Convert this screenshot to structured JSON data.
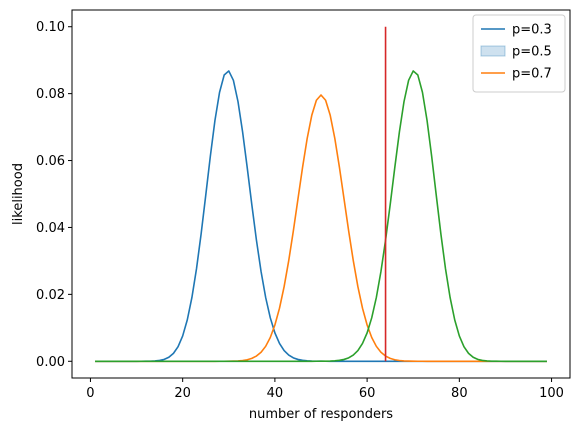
{
  "chart_data": {
    "type": "line",
    "title": "",
    "xlabel": "number of responders",
    "ylabel": "likelihood",
    "xlim": [
      -4,
      104
    ],
    "ylim": [
      -0.005,
      0.105
    ],
    "xticks": [
      0,
      20,
      40,
      60,
      80,
      100
    ],
    "yticks": [
      0.0,
      0.02,
      0.04,
      0.06,
      0.08,
      0.1
    ],
    "ytick_labels": [
      "0.00",
      "0.02",
      "0.04",
      "0.06",
      "0.08",
      "0.10"
    ],
    "grid": false,
    "legend_position": "top-right",
    "legend": [
      {
        "label": "p=0.3",
        "kind": "line",
        "color": "#1f77b4"
      },
      {
        "label": "p=0.5",
        "kind": "patch",
        "color": "#1f77b4"
      },
      {
        "label": "p=0.7",
        "kind": "line",
        "color": "#ff7f0e"
      }
    ],
    "n": 100,
    "x_range": [
      1,
      99
    ],
    "series": [
      {
        "p": 0.3,
        "color": "#1f77b4"
      },
      {
        "p": 0.5,
        "color": "#ff7f0e"
      },
      {
        "p": 0.7,
        "color": "#2ca02c"
      }
    ],
    "vline": {
      "x": 64,
      "ymin": 0.0,
      "ymax": 0.1,
      "color": "#d62728"
    }
  }
}
